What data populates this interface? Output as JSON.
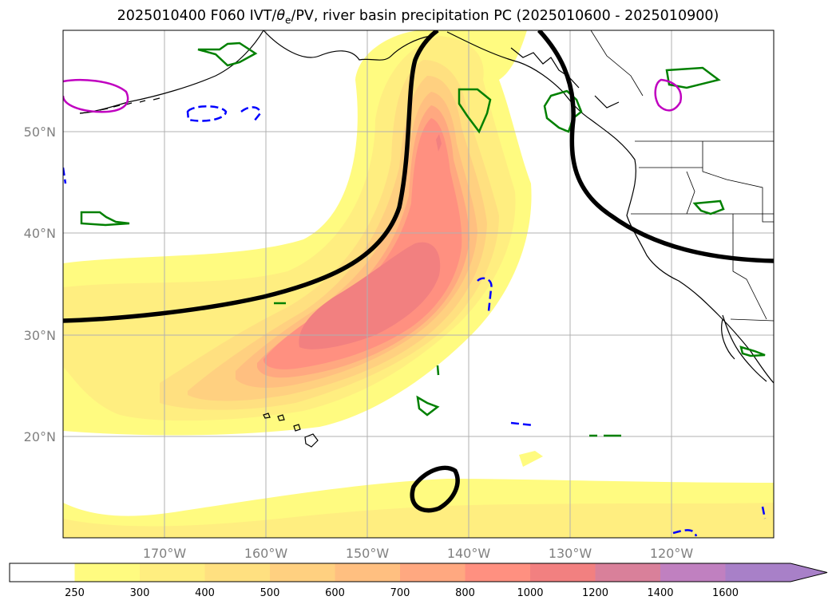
{
  "title": {
    "prefix": "2025010400 F060 IVT/",
    "theta": "θ",
    "theta_sub": "e",
    "suffix": "/PV, river basin precipitation PC (2025010600 - 2025010900)"
  },
  "map": {
    "projection": "equirectangular",
    "lon_range": [
      -180,
      -110
    ],
    "lat_range": [
      10,
      60
    ],
    "gridlines": true,
    "lon_ticks": [
      "170°W",
      "160°W",
      "150°W",
      "140°W",
      "130°W",
      "120°W"
    ],
    "lat_ticks": [
      "20°N",
      "30°N",
      "40°N",
      "50°N"
    ]
  },
  "colorbar": {
    "levels": [
      "250",
      "300",
      "400",
      "500",
      "600",
      "700",
      "800",
      "1000",
      "1200",
      "1400",
      "1600"
    ],
    "colors": [
      "#ffffff",
      "#fffb80",
      "#ffee80",
      "#ffe080",
      "#ffd080",
      "#ffbf80",
      "#ffa880",
      "#ff9080",
      "#f28080",
      "#d9809a",
      "#c080c0",
      "#a880c8"
    ],
    "extend": "max"
  },
  "legend_colors": {
    "ivt_contour_line": "#000000",
    "pc_positive": "#008000",
    "pc_negative": "#0000ff",
    "pc_extreme": "#c000c0"
  }
}
